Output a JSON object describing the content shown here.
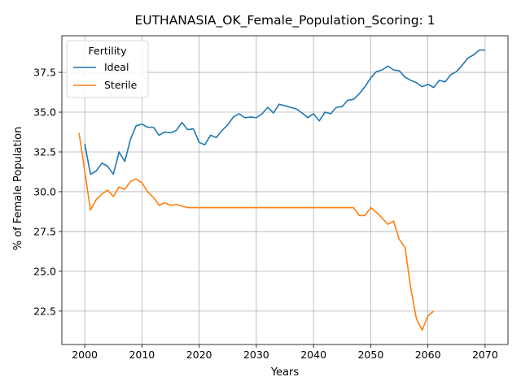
{
  "chart_data": {
    "type": "line",
    "title": "EUTHANASIA_OK_Female_Population_Scoring: 1",
    "xlabel": "Years",
    "ylabel": "% of Female Population",
    "xlim": [
      1996,
      2074
    ],
    "ylim": [
      20.4,
      39.8
    ],
    "x_ticks": [
      2000,
      2010,
      2020,
      2030,
      2040,
      2050,
      2060,
      2070
    ],
    "y_ticks": [
      22.5,
      25.0,
      27.5,
      30.0,
      32.5,
      35.0,
      37.5
    ],
    "grid": true,
    "legend": {
      "title": "Fertility",
      "position": "upper-left"
    },
    "series": [
      {
        "name": "Ideal",
        "color": "#1f77b4",
        "x": [
          2000,
          2001,
          2002,
          2003,
          2004,
          2005,
          2006,
          2007,
          2008,
          2009,
          2010,
          2011,
          2012,
          2013,
          2014,
          2015,
          2016,
          2017,
          2018,
          2019,
          2020,
          2021,
          2022,
          2023,
          2024,
          2025,
          2026,
          2027,
          2028,
          2029,
          2030,
          2031,
          2032,
          2033,
          2034,
          2035,
          2036,
          2037,
          2038,
          2039,
          2040,
          2041,
          2042,
          2043,
          2044,
          2045,
          2046,
          2047,
          2048,
          2049,
          2050,
          2051,
          2052,
          2053,
          2054,
          2055,
          2056,
          2057,
          2058,
          2059,
          2060,
          2061,
          2062,
          2063,
          2064,
          2065,
          2066,
          2067,
          2068,
          2069,
          2070
        ],
        "values": [
          33.0,
          31.1,
          31.3,
          31.8,
          31.6,
          31.1,
          32.5,
          31.9,
          33.3,
          34.15,
          34.25,
          34.05,
          34.05,
          33.55,
          33.75,
          33.7,
          33.85,
          34.35,
          33.9,
          33.95,
          33.1,
          32.95,
          33.55,
          33.4,
          33.85,
          34.2,
          34.7,
          34.9,
          34.65,
          34.7,
          34.65,
          34.9,
          35.3,
          34.95,
          35.5,
          35.4,
          35.3,
          35.2,
          34.95,
          34.65,
          34.9,
          34.45,
          35.0,
          34.9,
          35.3,
          35.35,
          35.75,
          35.8,
          36.15,
          36.6,
          37.15,
          37.55,
          37.65,
          37.9,
          37.65,
          37.6,
          37.2,
          37.0,
          36.85,
          36.6,
          36.75,
          36.55,
          37.0,
          36.9,
          37.35,
          37.55,
          37.95,
          38.4,
          38.6,
          38.9,
          38.9
        ]
      },
      {
        "name": "Sterile",
        "color": "#ff7f0e",
        "x": [
          1999,
          2000,
          2001,
          2002,
          2003,
          2004,
          2005,
          2006,
          2007,
          2008,
          2009,
          2010,
          2011,
          2012,
          2013,
          2014,
          2015,
          2016,
          2017,
          2018,
          2019,
          2020,
          2021,
          2022,
          2023,
          2024,
          2025,
          2026,
          2027,
          2028,
          2029,
          2030,
          2031,
          2032,
          2033,
          2034,
          2035,
          2036,
          2037,
          2038,
          2039,
          2040,
          2041,
          2042,
          2043,
          2044,
          2045,
          2046,
          2047,
          2048,
          2049,
          2050,
          2051,
          2052,
          2053,
          2054,
          2055,
          2056,
          2057,
          2058,
          2059,
          2060,
          2061
        ],
        "values": [
          33.7,
          31.3,
          28.85,
          29.5,
          29.85,
          30.1,
          29.7,
          30.3,
          30.15,
          30.65,
          30.8,
          30.55,
          30.0,
          29.65,
          29.15,
          29.3,
          29.15,
          29.2,
          29.1,
          29.0,
          29.0,
          29.0,
          29.0,
          29.0,
          29.0,
          29.0,
          29.0,
          29.0,
          29.0,
          29.0,
          29.0,
          29.0,
          29.0,
          29.0,
          29.0,
          29.0,
          29.0,
          29.0,
          29.0,
          29.0,
          29.0,
          29.0,
          29.0,
          29.0,
          29.0,
          29.0,
          29.0,
          29.0,
          29.0,
          28.5,
          28.5,
          29.0,
          28.7,
          28.35,
          27.95,
          28.15,
          27.0,
          26.5,
          23.95,
          22.0,
          21.3,
          22.2,
          22.5
        ]
      }
    ]
  }
}
